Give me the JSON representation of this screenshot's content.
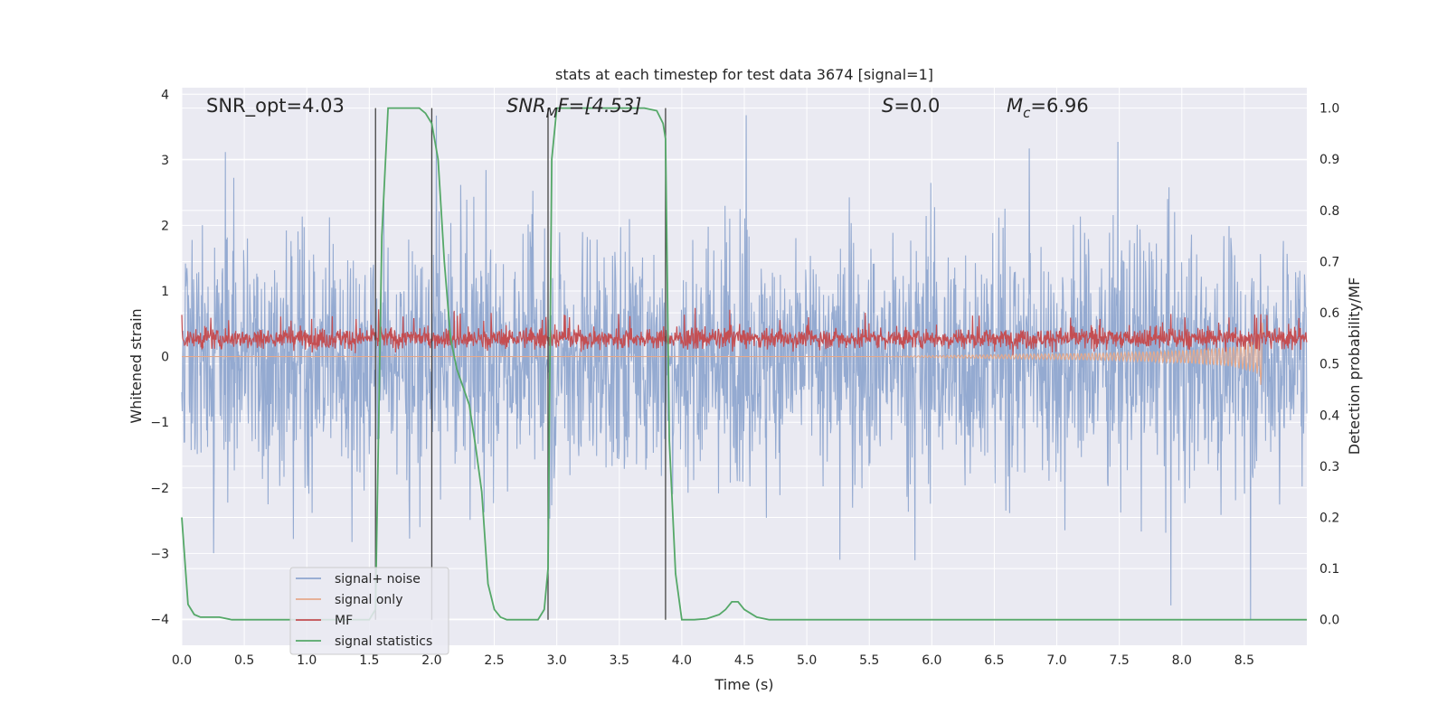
{
  "chart_data": {
    "type": "line",
    "title": "stats at each timestep for test data 3674 [signal=1]",
    "xlabel": "Time (s)",
    "ylabel": "Whitened strain",
    "ylabel_right": "Detection probability/MF",
    "xlim": [
      0,
      9.0
    ],
    "ylim": [
      -4.4,
      4.1
    ],
    "ylim_right": [
      -0.05,
      1.04
    ],
    "x_ticks": [
      0.0,
      0.5,
      1.0,
      1.5,
      2.0,
      2.5,
      3.0,
      3.5,
      4.0,
      4.5,
      5.0,
      5.5,
      6.0,
      6.5,
      7.0,
      7.5,
      8.0,
      8.5
    ],
    "x_tick_labels": [
      "0.0",
      "0.5",
      "1.0",
      "1.5",
      "2.0",
      "2.5",
      "3.0",
      "3.5",
      "4.0",
      "4.5",
      "5.0",
      "5.5",
      "6.0",
      "6.5",
      "7.0",
      "7.5",
      "8.0",
      "8.5"
    ],
    "y_ticks": [
      4,
      3,
      2,
      1,
      0,
      -1,
      -2,
      -3,
      -4
    ],
    "y_tick_labels": [
      "4",
      "3",
      "2",
      "1",
      "0",
      "−1",
      "−2",
      "−3",
      "−4"
    ],
    "y_ticks_right": [
      1.0,
      0.9,
      0.8,
      0.7,
      0.6,
      0.5,
      0.4,
      0.3,
      0.2,
      0.1,
      0.0
    ],
    "y_tick_labels_right": [
      "1.0",
      "0.9",
      "0.8",
      "0.7",
      "0.6",
      "0.5",
      "0.4",
      "0.3",
      "0.2",
      "0.1",
      "0.0"
    ],
    "grid": true,
    "legend_placement": "lower-left",
    "annotations": {
      "snr_opt": "SNR_opt=4.03",
      "snr_mf_main": "SNR",
      "snr_mf_sub": "M",
      "snr_mf_rest": "F=[4.53]",
      "s_sym": "S",
      "s_val": "=0.0",
      "mc_sym": "M",
      "mc_sub": "c",
      "mc_val": "=6.96"
    },
    "detection_markers_x": [
      1.55,
      2.0,
      2.93,
      3.87
    ],
    "series": [
      {
        "name": "signal+ noise",
        "color": "#8fa6cf",
        "kind": "noise",
        "amplitude_typical": 1.6,
        "amplitude_peak": 4.0
      },
      {
        "name": "signal only",
        "color": "#e5a98b",
        "kind": "chirp",
        "envelope": [
          [
            5.5,
            0.0
          ],
          [
            6.5,
            0.03
          ],
          [
            7.5,
            0.06
          ],
          [
            8.0,
            0.1
          ],
          [
            8.4,
            0.15
          ],
          [
            8.6,
            0.25
          ],
          [
            8.65,
            0.55
          ]
        ],
        "end_x": 8.65
      },
      {
        "name": "MF",
        "color": "#c44e52",
        "kind": "band",
        "center": 0.28,
        "spread": 0.3
      },
      {
        "name": "signal statistics",
        "color": "#55a868",
        "axis": "right",
        "x": [
          0.0,
          0.05,
          0.1,
          0.15,
          0.2,
          0.3,
          0.4,
          0.5,
          1.0,
          1.5,
          1.55,
          1.6,
          1.65,
          1.7,
          1.8,
          1.9,
          1.95,
          2.0,
          2.05,
          2.1,
          2.15,
          2.2,
          2.3,
          2.35,
          2.4,
          2.45,
          2.5,
          2.55,
          2.6,
          2.7,
          2.85,
          2.9,
          2.93,
          2.96,
          3.0,
          3.1,
          3.3,
          3.5,
          3.7,
          3.8,
          3.85,
          3.87,
          3.9,
          3.95,
          4.0,
          4.1,
          4.2,
          4.3,
          4.35,
          4.4,
          4.45,
          4.5,
          4.6,
          4.7,
          4.8,
          5.0,
          6.0,
          7.0,
          8.0,
          9.0
        ],
        "y": [
          0.2,
          0.03,
          0.01,
          0.005,
          0.005,
          0.005,
          0.0,
          0.0,
          0.0,
          0.0,
          0.02,
          0.75,
          1.0,
          1.0,
          1.0,
          1.0,
          0.99,
          0.97,
          0.9,
          0.7,
          0.55,
          0.49,
          0.42,
          0.34,
          0.25,
          0.07,
          0.02,
          0.005,
          0.0,
          0.0,
          0.0,
          0.02,
          0.1,
          0.9,
          1.0,
          1.0,
          1.0,
          1.0,
          1.0,
          0.995,
          0.97,
          0.94,
          0.35,
          0.09,
          0.0,
          0.0,
          0.002,
          0.01,
          0.02,
          0.035,
          0.035,
          0.02,
          0.005,
          0.0,
          0.0,
          0.0,
          0.0,
          0.0,
          0.0,
          0.0
        ]
      }
    ]
  }
}
